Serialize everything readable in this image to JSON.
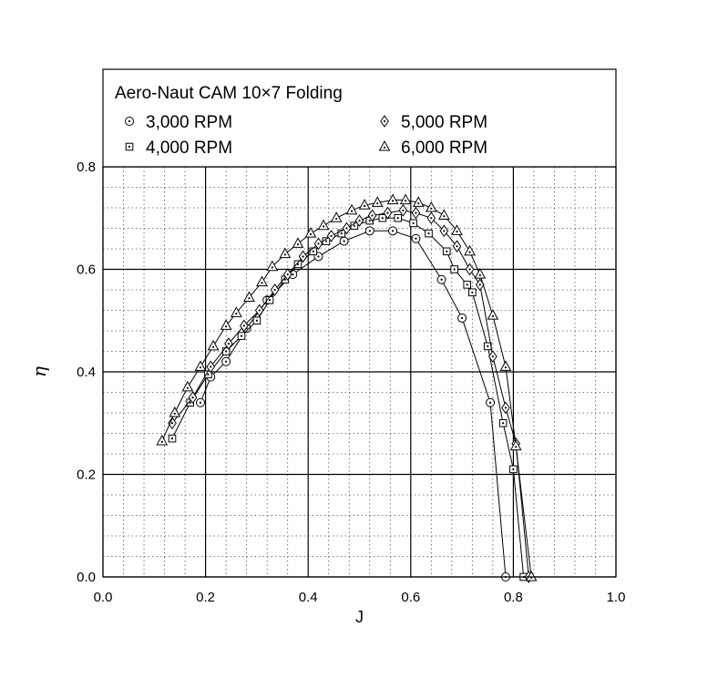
{
  "chart_data": {
    "type": "line",
    "title": "Aero-Naut CAM 10×7 Folding",
    "xlabel": "J",
    "ylabel": "η",
    "xlim": [
      0.0,
      1.0
    ],
    "ylim": [
      0.0,
      0.8
    ],
    "xticks": [
      "0.0",
      "0.2",
      "0.4",
      "0.6",
      "0.8",
      "1.0"
    ],
    "yticks": [
      "0.0",
      "0.2",
      "0.4",
      "0.6",
      "0.8"
    ],
    "grid": true,
    "legend_position": "top",
    "series": [
      {
        "name": "3,000 RPM",
        "marker": "circle-dot",
        "x": [
          0.19,
          0.21,
          0.24,
          0.28,
          0.32,
          0.37,
          0.42,
          0.47,
          0.52,
          0.565,
          0.61,
          0.66,
          0.7,
          0.755,
          0.785
        ],
        "y": [
          0.34,
          0.39,
          0.42,
          0.485,
          0.54,
          0.59,
          0.625,
          0.655,
          0.675,
          0.675,
          0.66,
          0.58,
          0.505,
          0.34,
          0.0
        ]
      },
      {
        "name": "4,000 RPM",
        "marker": "square-dot",
        "x": [
          0.135,
          0.17,
          0.205,
          0.24,
          0.27,
          0.3,
          0.325,
          0.355,
          0.38,
          0.41,
          0.435,
          0.465,
          0.49,
          0.52,
          0.545,
          0.575,
          0.605,
          0.635,
          0.67,
          0.685,
          0.71,
          0.72,
          0.75,
          0.78,
          0.8,
          0.82
        ],
        "y": [
          0.27,
          0.34,
          0.395,
          0.44,
          0.47,
          0.5,
          0.54,
          0.58,
          0.61,
          0.635,
          0.655,
          0.67,
          0.685,
          0.695,
          0.7,
          0.7,
          0.69,
          0.67,
          0.635,
          0.6,
          0.57,
          0.555,
          0.45,
          0.3,
          0.21,
          0.0
        ]
      },
      {
        "name": "5,000 RPM",
        "marker": "diamond-dot",
        "x": [
          0.135,
          0.175,
          0.21,
          0.245,
          0.275,
          0.305,
          0.335,
          0.36,
          0.39,
          0.42,
          0.445,
          0.475,
          0.5,
          0.525,
          0.555,
          0.585,
          0.61,
          0.64,
          0.665,
          0.69,
          0.715,
          0.735,
          0.76,
          0.785,
          0.805,
          0.83
        ],
        "y": [
          0.3,
          0.35,
          0.41,
          0.455,
          0.49,
          0.52,
          0.56,
          0.59,
          0.625,
          0.65,
          0.665,
          0.68,
          0.695,
          0.705,
          0.71,
          0.715,
          0.71,
          0.7,
          0.675,
          0.645,
          0.6,
          0.57,
          0.43,
          0.33,
          0.26,
          0.0
        ]
      },
      {
        "name": "6,000 RPM",
        "marker": "triangle-dot",
        "x": [
          0.115,
          0.14,
          0.165,
          0.19,
          0.215,
          0.24,
          0.26,
          0.285,
          0.31,
          0.33,
          0.355,
          0.38,
          0.405,
          0.43,
          0.455,
          0.485,
          0.51,
          0.535,
          0.565,
          0.59,
          0.615,
          0.64,
          0.665,
          0.69,
          0.715,
          0.735,
          0.76,
          0.785,
          0.805,
          0.835
        ],
        "y": [
          0.265,
          0.32,
          0.37,
          0.41,
          0.45,
          0.49,
          0.515,
          0.545,
          0.575,
          0.605,
          0.63,
          0.65,
          0.67,
          0.685,
          0.7,
          0.715,
          0.725,
          0.73,
          0.735,
          0.735,
          0.73,
          0.72,
          0.705,
          0.675,
          0.635,
          0.59,
          0.51,
          0.41,
          0.255,
          0.0
        ]
      }
    ]
  }
}
